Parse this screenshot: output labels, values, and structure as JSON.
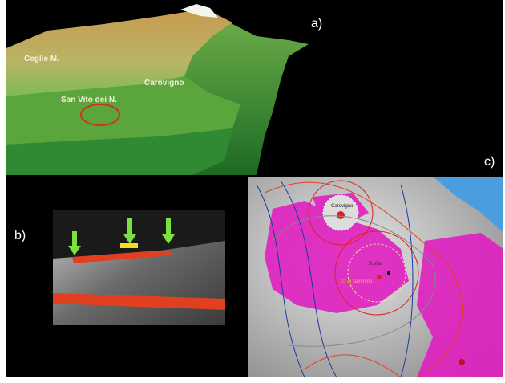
{
  "panels": {
    "a": {
      "label": "a)",
      "places": [
        "Ceglie M.",
        "Carovigno",
        "San Vito dei N."
      ]
    },
    "b": {
      "label": "b)"
    },
    "c": {
      "label": "c)",
      "places": [
        "Carovigno",
        "S.Vito",
        "10' di cammino"
      ]
    }
  }
}
